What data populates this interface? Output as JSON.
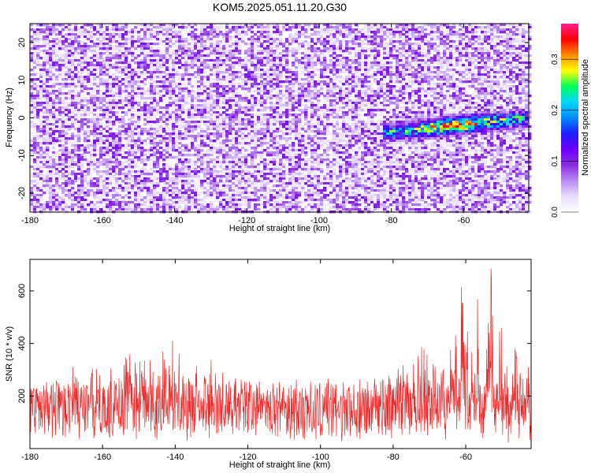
{
  "page": {
    "title": "KOM5.2025.051.11.20.G30"
  },
  "colors": {
    "snr_line": "#ee2a2a",
    "colormap": [
      "#ffffff",
      "#e8dcff",
      "#b98cf2",
      "#8a2be2",
      "#6a00ff",
      "#1f1bff",
      "#008cff",
      "#00d7ff",
      "#00ff5a",
      "#ffff00",
      "#ff8c00",
      "#ff0000",
      "#ff1e90"
    ]
  },
  "chart_data": [
    {
      "type": "heatmap",
      "title": "KOM5.2025.051.11.20.G30",
      "xlabel": "Height of straight line (km)",
      "ylabel": "Frequency (Hz)",
      "xlim": [
        -180,
        -42
      ],
      "ylim": [
        -25,
        25
      ],
      "xticks": [
        "-180",
        "-160",
        "-140",
        "-120",
        "-100",
        "-80",
        "-60"
      ],
      "yticks": [
        "-20",
        "-10",
        "0",
        "10",
        "20"
      ],
      "colorbar": {
        "label": "Normalized spectral amplitude",
        "range": [
          0.0,
          0.37
        ],
        "ticks": [
          "0.0",
          "0.1",
          "0.2",
          "0.3"
        ]
      },
      "features": [
        {
          "name": "noise",
          "x_range": [
            -180,
            -42
          ],
          "y_range": [
            -25,
            25
          ],
          "amplitude": 0.05
        },
        {
          "name": "signal band",
          "x_range": [
            -82,
            -42
          ],
          "y_center_at_start": -4,
          "y_center_at_end": 0,
          "amplitude_peak": 0.36,
          "peak_x": -62
        }
      ]
    },
    {
      "type": "line",
      "xlabel": "Height of straight line (km)",
      "ylabel": "SNR (10 * v/v)",
      "xlim": [
        -180,
        -42
      ],
      "ylim": [
        0,
        720
      ],
      "xticks": [
        "-180",
        "-160",
        "-140",
        "-120",
        "-100",
        "-80",
        "-60"
      ],
      "yticks": [
        "200",
        "400",
        "600"
      ],
      "series": [
        {
          "envelope_points": {
            "x": [
              -180,
              -176,
              -172,
              -168,
              -164,
              -160,
              -156,
              -152,
              -148,
              -144,
              -141,
              -138,
              -134,
              -131,
              -128,
              -124,
              -120,
              -116,
              -112,
              -108,
              -104,
              -100,
              -96,
              -92,
              -88,
              -84,
              -80,
              -76,
              -72,
              -68,
              -66,
              -64,
              -62,
              -60,
              -58,
              -56,
              -54,
              -53,
              -52,
              -50,
              -48,
              -46,
              -44,
              -42
            ],
            "y": [
              240,
              280,
              290,
              320,
              310,
              300,
              310,
              380,
              350,
              360,
              420,
              340,
              340,
              400,
              300,
              260,
              280,
              250,
              240,
              250,
              230,
              260,
              250,
              250,
              280,
              270,
              300,
              330,
              390,
              370,
              420,
              500,
              700,
              520,
              600,
              580,
              430,
              720,
              400,
              480,
              420,
              380,
              350,
              360
            ]
          },
          "baseline_mean": 120
        }
      ]
    }
  ]
}
